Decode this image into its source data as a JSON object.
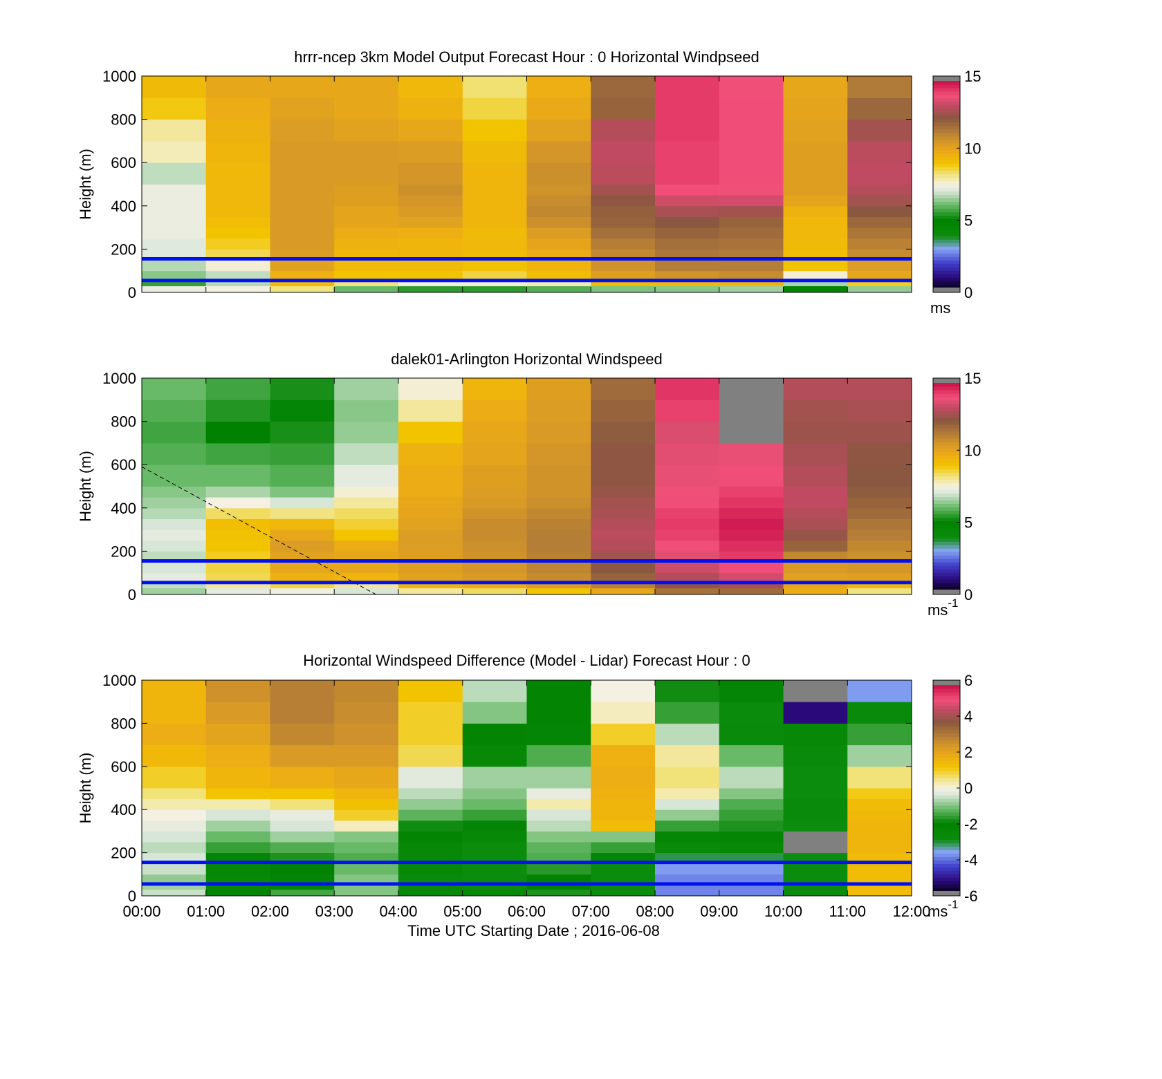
{
  "chart_data": [
    {
      "type": "heatmap",
      "title": "hrrr-ncep 3km Model Output   Forecast Hour : 0 Horizontal Windpseed",
      "ylabel": "Height (m)",
      "xlabel": "",
      "ylim": [
        0,
        1000
      ],
      "yticks": [
        "0",
        "200",
        "400",
        "600",
        "800",
        "1000"
      ],
      "colorbar": {
        "ticks": [
          "0",
          "5",
          "10",
          "15"
        ],
        "range": [
          0,
          15
        ],
        "unit": "ms",
        "unit_sup": ""
      },
      "ref_lines": [
        55,
        155
      ],
      "x": [
        "00:00",
        "01:00",
        "02:00",
        "03:00",
        "04:00",
        "05:00",
        "06:00",
        "07:00",
        "08:00",
        "09:00",
        "10:00",
        "11:00"
      ],
      "height_bins": [
        0,
        30,
        60,
        100,
        150,
        200,
        250,
        300,
        350,
        400,
        450,
        500,
        600,
        700,
        800,
        900,
        1000
      ],
      "values": [
        [
          7.3,
          5.5,
          6.3,
          6.7,
          7.1,
          7.1,
          7.3,
          7.3,
          7.3,
          7.3,
          7.3,
          6.8,
          7.8,
          8.0,
          8.9,
          9.3
        ],
        [
          7.5,
          6.7,
          6.8,
          7.6,
          8.5,
          8.8,
          9.0,
          9.2,
          9.4,
          9.4,
          9.4,
          9.4,
          9.5,
          9.6,
          9.8,
          10.0
        ],
        [
          8.2,
          9.3,
          9.6,
          10.2,
          10.4,
          10.5,
          10.5,
          10.5,
          10.5,
          10.5,
          10.5,
          10.5,
          10.5,
          10.4,
          10.2,
          10.0
        ],
        [
          6.0,
          8.2,
          9.0,
          9.3,
          9.4,
          9.6,
          9.8,
          10.1,
          10.1,
          10.3,
          10.3,
          10.5,
          10.5,
          10.2,
          10.0,
          10.0
        ],
        [
          5.4,
          7.4,
          9.0,
          9.3,
          9.5,
          9.5,
          9.7,
          10.2,
          10.5,
          10.6,
          10.8,
          10.6,
          10.4,
          10.0,
          9.6,
          9.4
        ],
        [
          5.4,
          7.6,
          8.6,
          9.1,
          9.3,
          9.4,
          9.3,
          9.5,
          9.5,
          9.5,
          9.5,
          9.5,
          9.3,
          9.0,
          8.6,
          8.3
        ],
        [
          5.8,
          7.8,
          9.2,
          9.5,
          9.8,
          10.1,
          10.4,
          10.8,
          11.0,
          10.9,
          10.7,
          10.8,
          10.6,
          10.2,
          9.9,
          9.7
        ],
        [
          6.2,
          9.2,
          10.3,
          10.7,
          11.0,
          11.3,
          11.7,
          12.0,
          12.1,
          12.4,
          12.7,
          13.1,
          13.2,
          13.0,
          12.0,
          11.9
        ],
        [
          6.3,
          9.4,
          10.7,
          11.3,
          11.5,
          11.7,
          12.0,
          12.3,
          12.8,
          13.4,
          14.0,
          14.2,
          14.2,
          14.3,
          14.3,
          14.3
        ],
        [
          6.5,
          9.5,
          10.9,
          11.3,
          11.4,
          11.6,
          11.8,
          12.0,
          12.7,
          13.5,
          13.9,
          14.0,
          14.0,
          14.0,
          14.0,
          13.9
        ],
        [
          4.8,
          6.6,
          7.6,
          9.0,
          9.2,
          9.3,
          9.4,
          9.4,
          9.6,
          10.1,
          10.3,
          10.3,
          10.3,
          10.2,
          10.1,
          10.0
        ],
        [
          6.4,
          8.8,
          10.0,
          10.4,
          10.9,
          11.2,
          11.5,
          11.9,
          12.3,
          12.7,
          13.0,
          13.2,
          13.1,
          12.7,
          11.9,
          11.4
        ]
      ]
    },
    {
      "type": "heatmap",
      "title": "dalek01-Arlington  Horizontal Windspeed",
      "ylabel": "Height (m)",
      "xlabel": "",
      "ylim": [
        0,
        1000
      ],
      "yticks": [
        "0",
        "200",
        "400",
        "600",
        "800",
        "1000"
      ],
      "colorbar": {
        "ticks": [
          "0",
          "5",
          "10",
          "15"
        ],
        "range": [
          0,
          15
        ],
        "unit": "ms",
        "unit_sup": "-1"
      },
      "ref_lines": [
        55,
        155
      ],
      "dashed_line": {
        "from": [
          0.0,
          590
        ],
        "to": [
          3.65,
          0
        ]
      },
      "x": [
        "00:00",
        "01:00",
        "02:00",
        "03:00",
        "04:00",
        "05:00",
        "06:00",
        "07:00",
        "08:00",
        "09:00",
        "10:00",
        "11:00"
      ],
      "height_bins": [
        0,
        30,
        60,
        100,
        150,
        200,
        250,
        300,
        350,
        400,
        450,
        500,
        600,
        700,
        800,
        900,
        1000
      ],
      "values": [
        [
          6.5,
          6.8,
          7.2,
          7.0,
          6.8,
          7.0,
          7.2,
          7.0,
          6.7,
          6.5,
          6.3,
          6.0,
          5.8,
          5.6,
          5.8,
          6.0
        ],
        [
          7.2,
          8.0,
          8.5,
          8.6,
          8.8,
          9.0,
          9.1,
          9.2,
          8.4,
          7.5,
          6.6,
          6.0,
          5.6,
          4.9,
          5.3,
          5.6
        ],
        [
          7.4,
          8.6,
          9.6,
          10.0,
          10.2,
          10.4,
          10.0,
          9.4,
          8.2,
          7.0,
          6.2,
          5.8,
          5.5,
          5.2,
          5.0,
          5.2
        ],
        [
          7.0,
          8.0,
          9.5,
          10.0,
          10.0,
          9.8,
          9.0,
          8.7,
          8.4,
          8.0,
          7.6,
          7.2,
          6.8,
          6.4,
          6.3,
          6.5
        ],
        [
          8.0,
          9.5,
          10.2,
          10.3,
          10.3,
          10.4,
          10.4,
          10.2,
          10.1,
          10.0,
          9.8,
          9.8,
          9.6,
          9.0,
          8.0,
          7.6
        ],
        [
          8.4,
          9.8,
          10.5,
          10.6,
          10.7,
          10.8,
          10.9,
          10.9,
          10.7,
          10.5,
          10.4,
          10.3,
          10.1,
          10.0,
          9.8,
          9.5
        ],
        [
          9.0,
          10.4,
          10.9,
          11.1,
          11.2,
          11.3,
          11.3,
          11.2,
          11.0,
          10.8,
          10.7,
          10.7,
          10.6,
          10.5,
          10.4,
          10.3
        ],
        [
          10.0,
          11.2,
          12.0,
          12.3,
          12.7,
          13.0,
          13.1,
          13.0,
          12.8,
          12.7,
          12.5,
          12.4,
          12.4,
          12.2,
          12.0,
          11.8
        ],
        [
          11.6,
          12.4,
          13.0,
          13.4,
          13.7,
          14.0,
          14.2,
          14.3,
          14.2,
          14.0,
          13.9,
          13.8,
          13.7,
          13.6,
          14.2,
          14.4
        ],
        [
          11.8,
          12.8,
          13.5,
          14.0,
          14.3,
          14.5,
          14.7,
          14.8,
          14.6,
          14.4,
          14.2,
          14.0,
          13.8,
          null,
          null,
          null
        ],
        [
          9.8,
          10.0,
          10.2,
          10.5,
          11.0,
          12.0,
          12.5,
          12.8,
          13.0,
          13.2,
          13.2,
          13.0,
          12.8,
          12.6,
          12.7,
          13.0
        ],
        [
          8.2,
          9.4,
          10.3,
          10.6,
          10.8,
          11.0,
          11.3,
          11.5,
          11.8,
          12.0,
          12.2,
          12.3,
          12.4,
          12.6,
          12.8,
          13.0
        ]
      ]
    },
    {
      "type": "heatmap",
      "title": "Horizontal Windspeed Difference (Model - Lidar) Forecast Hour : 0",
      "ylabel": "Height (m)",
      "xlabel": "Time UTC  Starting Date ; 2016-06-08",
      "ylim": [
        0,
        1000
      ],
      "yticks": [
        "0",
        "200",
        "400",
        "600",
        "800",
        "1000"
      ],
      "colorbar": {
        "ticks": [
          "-6",
          "-4",
          "-2",
          "0",
          "2",
          "4",
          "6"
        ],
        "range": [
          -6,
          6
        ],
        "unit": "ms",
        "unit_sup": "-1"
      },
      "ref_lines": [
        55,
        155
      ],
      "x": [
        "00:00",
        "01:00",
        "02:00",
        "03:00",
        "04:00",
        "05:00",
        "06:00",
        "07:00",
        "08:00",
        "09:00",
        "10:00",
        "11:00"
      ],
      "height_bins": [
        0,
        30,
        60,
        100,
        150,
        200,
        250,
        300,
        350,
        400,
        450,
        500,
        600,
        700,
        800,
        900,
        1000
      ],
      "values": [
        [
          -0.5,
          -0.8,
          -0.9,
          -0.5,
          -0.4,
          -0.6,
          -0.4,
          -0.2,
          0.0,
          0.3,
          0.6,
          1.0,
          1.5,
          1.8,
          1.6,
          1.6
        ],
        [
          -2.2,
          -2.6,
          -2.6,
          -2.5,
          -2.0,
          -1.6,
          -1.2,
          -0.8,
          -0.4,
          0.3,
          1.2,
          1.6,
          1.8,
          2.1,
          2.4,
          2.6
        ],
        [
          -1.5,
          -2.0,
          -2.0,
          -2.1,
          -1.8,
          -1.4,
          -0.8,
          -0.4,
          -0.2,
          0.6,
          1.2,
          1.8,
          2.4,
          2.8,
          3.0,
          3.0
        ],
        [
          -1.0,
          -1.0,
          -1.0,
          -1.2,
          -1.4,
          -1.2,
          -1.0,
          0.2,
          1.0,
          1.3,
          1.6,
          2.0,
          2.4,
          2.6,
          2.7,
          2.8
        ],
        [
          -2.6,
          -2.8,
          -2.8,
          -2.6,
          -2.6,
          -2.6,
          -2.3,
          -1.9,
          -1.3,
          -0.9,
          -0.6,
          -0.3,
          0.8,
          1.0,
          1.0,
          1.2
        ],
        [
          -2.6,
          -3.0,
          -3.0,
          -3.0,
          -3.0,
          -3.0,
          -2.6,
          -2.0,
          -1.6,
          -1.2,
          -1.0,
          -0.8,
          -2.6,
          -2.3,
          -1.0,
          -0.6
        ],
        [
          -1.8,
          -2.1,
          -2.1,
          -1.7,
          -1.4,
          -1.3,
          -1.0,
          -0.6,
          -0.4,
          0.3,
          -0.2,
          -0.8,
          -1.4,
          -2.0,
          -2.3,
          -2.3
        ],
        [
          -3.0,
          -3.0,
          -3.0,
          -3.0,
          -2.0,
          -1.6,
          -1.0,
          1.4,
          1.6,
          1.6,
          1.7,
          1.8,
          1.7,
          1.0,
          0.2,
          0.0
        ],
        [
          -4.0,
          -4.0,
          -4.0,
          -3.8,
          -3.2,
          -2.8,
          -2.4,
          -1.6,
          -0.9,
          -0.4,
          0.3,
          0.6,
          0.4,
          -0.6,
          -1.6,
          -1.9
        ],
        [
          -4.0,
          -4.0,
          -4.0,
          -3.8,
          -3.2,
          -2.6,
          -2.0,
          -1.8,
          -1.6,
          -1.4,
          -1.0,
          -0.6,
          -1.2,
          -2.8,
          -2.9,
          -2.0
        ],
        [
          -3.0,
          -3.0,
          -3.0,
          -3.0,
          -3.0,
          null,
          null,
          -3.0,
          -2.8,
          -2.8,
          -3.0,
          -3.0,
          -2.8,
          -2.6,
          -5.4,
          null
        ],
        [
          1.4,
          1.4,
          1.4,
          1.4,
          1.4,
          1.6,
          1.6,
          1.6,
          1.5,
          1.4,
          1.1,
          0.6,
          -0.8,
          -1.6,
          -2.8,
          -3.8
        ]
      ]
    }
  ]
}
